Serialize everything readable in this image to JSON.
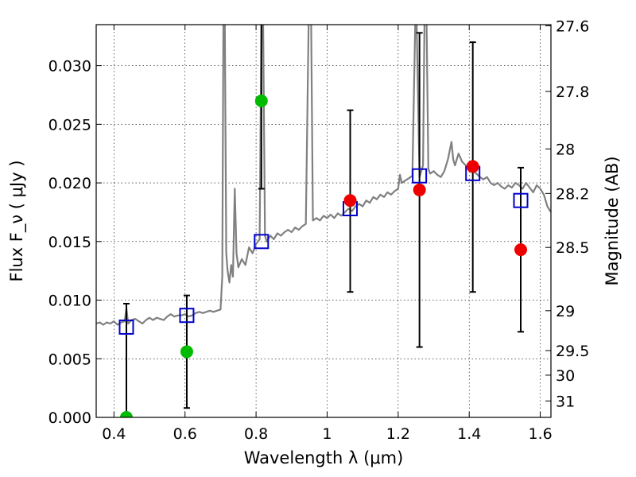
{
  "chart_data": {
    "type": "scatter",
    "xlabel": "Wavelength  λ (μm)",
    "ylabel": "Flux  F_ν  ( μJy )",
    "ylabel_right": "Magnitude (AB)",
    "xlim": [
      0.35,
      1.63
    ],
    "ylim": [
      0.0,
      0.0335
    ],
    "grid": true,
    "x_ticks": [
      0.4,
      0.6,
      0.8,
      1.0,
      1.2,
      1.4,
      1.6
    ],
    "x_tick_labels": [
      "0.4",
      "0.6",
      "0.8",
      "1",
      "1.2",
      "1.4",
      "1.6"
    ],
    "y_ticks": [
      0.0,
      0.005,
      0.01,
      0.015,
      0.02,
      0.025,
      0.03
    ],
    "y_tick_labels": [
      "0.000",
      "0.005",
      "0.010",
      "0.015",
      "0.020",
      "0.025",
      "0.030"
    ],
    "right_ticks": [
      {
        "label": "27.6",
        "flux": 0.0334
      },
      {
        "label": "27.8",
        "flux": 0.0278
      },
      {
        "label": "28",
        "flux": 0.0229
      },
      {
        "label": "28.2",
        "flux": 0.0191
      },
      {
        "label": "28.5",
        "flux": 0.0145
      },
      {
        "label": "29",
        "flux": 0.0091
      },
      {
        "label": "29.5",
        "flux": 0.0057
      },
      {
        "label": "30",
        "flux": 0.0036
      },
      {
        "label": "31",
        "flux": 0.0014
      }
    ],
    "series": [
      {
        "kind": "line",
        "color": "#808080",
        "points": [
          [
            0.35,
            0.008
          ],
          [
            0.36,
            0.0081
          ],
          [
            0.37,
            0.0079
          ],
          [
            0.38,
            0.0081
          ],
          [
            0.39,
            0.008
          ],
          [
            0.4,
            0.0082
          ],
          [
            0.41,
            0.0079
          ],
          [
            0.42,
            0.0081
          ],
          [
            0.43,
            0.0082
          ],
          [
            0.435,
            0.0093
          ],
          [
            0.44,
            0.008
          ],
          [
            0.45,
            0.0083
          ],
          [
            0.46,
            0.0084
          ],
          [
            0.47,
            0.0082
          ],
          [
            0.48,
            0.008
          ],
          [
            0.49,
            0.0083
          ],
          [
            0.5,
            0.0085
          ],
          [
            0.51,
            0.0083
          ],
          [
            0.52,
            0.0085
          ],
          [
            0.53,
            0.0084
          ],
          [
            0.54,
            0.0083
          ],
          [
            0.55,
            0.0086
          ],
          [
            0.56,
            0.0088
          ],
          [
            0.57,
            0.0086
          ],
          [
            0.58,
            0.0087
          ],
          [
            0.59,
            0.0087
          ],
          [
            0.6,
            0.0088
          ],
          [
            0.61,
            0.0086
          ],
          [
            0.62,
            0.0087
          ],
          [
            0.63,
            0.0089
          ],
          [
            0.64,
            0.009
          ],
          [
            0.65,
            0.0089
          ],
          [
            0.66,
            0.009
          ],
          [
            0.67,
            0.0091
          ],
          [
            0.68,
            0.009
          ],
          [
            0.69,
            0.0091
          ],
          [
            0.7,
            0.0092
          ],
          [
            0.705,
            0.012
          ],
          [
            0.708,
            0.0336
          ],
          [
            0.712,
            0.0336
          ],
          [
            0.716,
            0.014
          ],
          [
            0.72,
            0.0125
          ],
          [
            0.725,
            0.0115
          ],
          [
            0.73,
            0.013
          ],
          [
            0.735,
            0.012
          ],
          [
            0.74,
            0.0195
          ],
          [
            0.745,
            0.014
          ],
          [
            0.75,
            0.0128
          ],
          [
            0.76,
            0.0135
          ],
          [
            0.77,
            0.013
          ],
          [
            0.78,
            0.0145
          ],
          [
            0.79,
            0.014
          ],
          [
            0.8,
            0.0148
          ],
          [
            0.81,
            0.0152
          ],
          [
            0.815,
            0.0336
          ],
          [
            0.82,
            0.0336
          ],
          [
            0.825,
            0.0155
          ],
          [
            0.83,
            0.015
          ],
          [
            0.84,
            0.0155
          ],
          [
            0.85,
            0.0152
          ],
          [
            0.86,
            0.0157
          ],
          [
            0.87,
            0.0155
          ],
          [
            0.88,
            0.0158
          ],
          [
            0.89,
            0.016
          ],
          [
            0.9,
            0.0158
          ],
          [
            0.91,
            0.0162
          ],
          [
            0.92,
            0.016
          ],
          [
            0.93,
            0.0163
          ],
          [
            0.94,
            0.0165
          ],
          [
            0.948,
            0.0336
          ],
          [
            0.955,
            0.0336
          ],
          [
            0.96,
            0.0168
          ],
          [
            0.97,
            0.017
          ],
          [
            0.98,
            0.0168
          ],
          [
            0.99,
            0.0172
          ],
          [
            1.0,
            0.017
          ],
          [
            1.01,
            0.0173
          ],
          [
            1.02,
            0.017
          ],
          [
            1.03,
            0.0174
          ],
          [
            1.04,
            0.0172
          ],
          [
            1.05,
            0.0175
          ],
          [
            1.06,
            0.0178
          ],
          [
            1.07,
            0.0176
          ],
          [
            1.08,
            0.018
          ],
          [
            1.09,
            0.0182
          ],
          [
            1.1,
            0.018
          ],
          [
            1.11,
            0.0185
          ],
          [
            1.12,
            0.0183
          ],
          [
            1.13,
            0.0188
          ],
          [
            1.14,
            0.0186
          ],
          [
            1.15,
            0.019
          ],
          [
            1.16,
            0.0188
          ],
          [
            1.17,
            0.0192
          ],
          [
            1.18,
            0.019
          ],
          [
            1.19,
            0.0193
          ],
          [
            1.2,
            0.0195
          ],
          [
            1.205,
            0.0207
          ],
          [
            1.21,
            0.02
          ],
          [
            1.22,
            0.0202
          ],
          [
            1.23,
            0.0204
          ],
          [
            1.24,
            0.0206
          ],
          [
            1.248,
            0.0336
          ],
          [
            1.252,
            0.0336
          ],
          [
            1.26,
            0.0205
          ],
          [
            1.265,
            0.021
          ],
          [
            1.27,
            0.0215
          ],
          [
            1.274,
            0.0336
          ],
          [
            1.28,
            0.0336
          ],
          [
            1.285,
            0.0212
          ],
          [
            1.29,
            0.0208
          ],
          [
            1.3,
            0.021
          ],
          [
            1.31,
            0.0207
          ],
          [
            1.32,
            0.0205
          ],
          [
            1.33,
            0.021
          ],
          [
            1.34,
            0.022
          ],
          [
            1.35,
            0.0235
          ],
          [
            1.355,
            0.022
          ],
          [
            1.36,
            0.0215
          ],
          [
            1.37,
            0.0225
          ],
          [
            1.38,
            0.0218
          ],
          [
            1.39,
            0.0215
          ],
          [
            1.4,
            0.0212
          ],
          [
            1.41,
            0.021
          ],
          [
            1.42,
            0.0208
          ],
          [
            1.43,
            0.0205
          ],
          [
            1.44,
            0.0203
          ],
          [
            1.45,
            0.0205
          ],
          [
            1.46,
            0.02
          ],
          [
            1.47,
            0.0198
          ],
          [
            1.48,
            0.02
          ],
          [
            1.49,
            0.0197
          ],
          [
            1.5,
            0.0195
          ],
          [
            1.51,
            0.0198
          ],
          [
            1.52,
            0.0196
          ],
          [
            1.53,
            0.02
          ],
          [
            1.54,
            0.0198
          ],
          [
            1.55,
            0.0195
          ],
          [
            1.56,
            0.02
          ],
          [
            1.57,
            0.0196
          ],
          [
            1.58,
            0.0192
          ],
          [
            1.59,
            0.0198
          ],
          [
            1.6,
            0.0195
          ],
          [
            1.61,
            0.019
          ],
          [
            1.62,
            0.018
          ],
          [
            1.63,
            0.0175
          ]
        ]
      },
      {
        "kind": "squares",
        "color": "#0000cc",
        "points": [
          [
            0.435,
            0.0077
          ],
          [
            0.605,
            0.0087
          ],
          [
            0.815,
            0.015
          ],
          [
            1.065,
            0.0178
          ],
          [
            1.26,
            0.0206
          ],
          [
            1.41,
            0.0208
          ],
          [
            1.545,
            0.0185
          ]
        ]
      },
      {
        "kind": "dots",
        "color": "#00bb00",
        "points": [
          [
            0.435,
            0.0
          ],
          [
            0.605,
            0.0056
          ],
          [
            0.815,
            0.027
          ]
        ]
      },
      {
        "kind": "dots",
        "color": "#ee0000",
        "points": [
          [
            1.065,
            0.0185
          ],
          [
            1.26,
            0.0194
          ],
          [
            1.41,
            0.0214
          ],
          [
            1.545,
            0.0143
          ]
        ]
      }
    ],
    "errorbars": [
      {
        "x": 0.435,
        "low": 0.0,
        "high": 0.0097
      },
      {
        "x": 0.605,
        "low": 0.0008,
        "high": 0.0104
      },
      {
        "x": 0.815,
        "low": 0.0195,
        "high": 0.0345
      },
      {
        "x": 1.065,
        "low": 0.0107,
        "high": 0.0262
      },
      {
        "x": 1.26,
        "low": 0.006,
        "high": 0.0328
      },
      {
        "x": 1.41,
        "low": 0.0107,
        "high": 0.032
      },
      {
        "x": 1.545,
        "low": 0.0073,
        "high": 0.0213
      }
    ]
  }
}
